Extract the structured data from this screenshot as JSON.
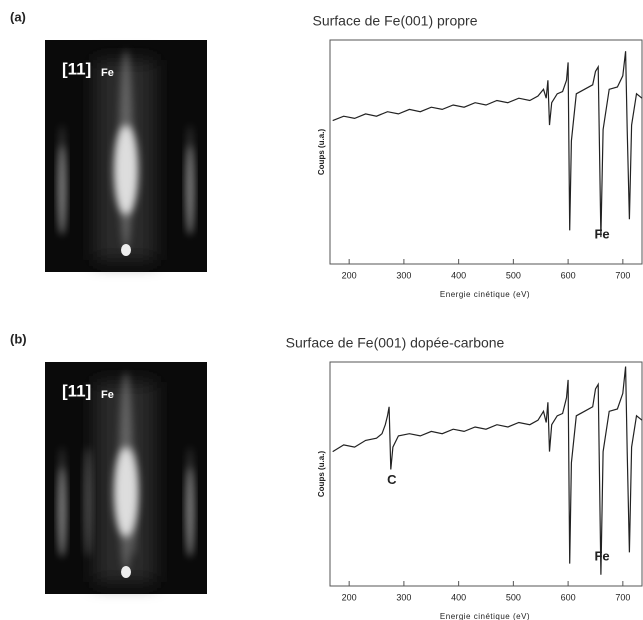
{
  "chart_data": [
    {
      "type": "line",
      "panel_label": "(a)",
      "title": "Surface de Fe(001) propre",
      "image_label": "[11]",
      "image_label_sub": "Fe",
      "x_label": "Energie cinétique (eV)",
      "y_label": "Coups (u.a.)",
      "xlim": [
        165,
        735
      ],
      "xticks": [
        200,
        300,
        400,
        500,
        600,
        700
      ],
      "ylim": [
        0,
        100
      ],
      "color": "#222",
      "x": [
        170,
        190,
        210,
        230,
        250,
        270,
        290,
        310,
        330,
        350,
        370,
        390,
        410,
        430,
        450,
        470,
        490,
        510,
        530,
        545,
        555,
        560,
        563,
        566,
        570,
        580,
        590,
        597,
        600,
        603,
        606,
        615,
        630,
        645,
        650,
        655,
        660,
        664,
        675,
        690,
        700,
        705,
        708,
        712,
        716,
        725,
        735
      ],
      "values": [
        64,
        66,
        65,
        67,
        66,
        68,
        67,
        69,
        68,
        70,
        69,
        71,
        70,
        72,
        71,
        73,
        72,
        74,
        73,
        75,
        78,
        74,
        82,
        62,
        72,
        76,
        77,
        82,
        90,
        15,
        55,
        76,
        78,
        80,
        86,
        88,
        12,
        60,
        78,
        79,
        84,
        95,
        60,
        20,
        62,
        76,
        74
      ],
      "annotations": [
        {
          "text": "Fe",
          "x": 662,
          "y": 13
        }
      ]
    },
    {
      "type": "line",
      "panel_label": "(b)",
      "title": "Surface de Fe(001) dopée-carbone",
      "image_label": "[11]",
      "image_label_sub": "Fe",
      "x_label": "Energie cinétique (eV)",
      "y_label": "Coups (u.a.)",
      "xlim": [
        165,
        735
      ],
      "xticks": [
        200,
        300,
        400,
        500,
        600,
        700
      ],
      "ylim": [
        0,
        100
      ],
      "color": "#222",
      "x": [
        170,
        190,
        210,
        230,
        250,
        260,
        266,
        270,
        273,
        276,
        280,
        290,
        310,
        330,
        350,
        370,
        390,
        410,
        430,
        450,
        470,
        490,
        510,
        530,
        545,
        555,
        560,
        563,
        566,
        570,
        580,
        590,
        597,
        600,
        603,
        606,
        615,
        630,
        645,
        650,
        655,
        660,
        664,
        675,
        690,
        700,
        705,
        708,
        712,
        716,
        725,
        735
      ],
      "values": [
        60,
        63,
        62,
        65,
        66,
        68,
        72,
        76,
        80,
        52,
        62,
        67,
        68,
        67,
        69,
        68,
        70,
        69,
        71,
        70,
        72,
        71,
        73,
        72,
        74,
        78,
        73,
        82,
        60,
        72,
        76,
        77,
        84,
        92,
        10,
        55,
        76,
        78,
        80,
        88,
        90,
        5,
        60,
        78,
        79,
        86,
        98,
        60,
        15,
        62,
        76,
        74
      ],
      "annotations": [
        {
          "text": "C",
          "x": 278,
          "y": 47
        },
        {
          "text": "Fe",
          "x": 662,
          "y": 13
        }
      ]
    }
  ]
}
